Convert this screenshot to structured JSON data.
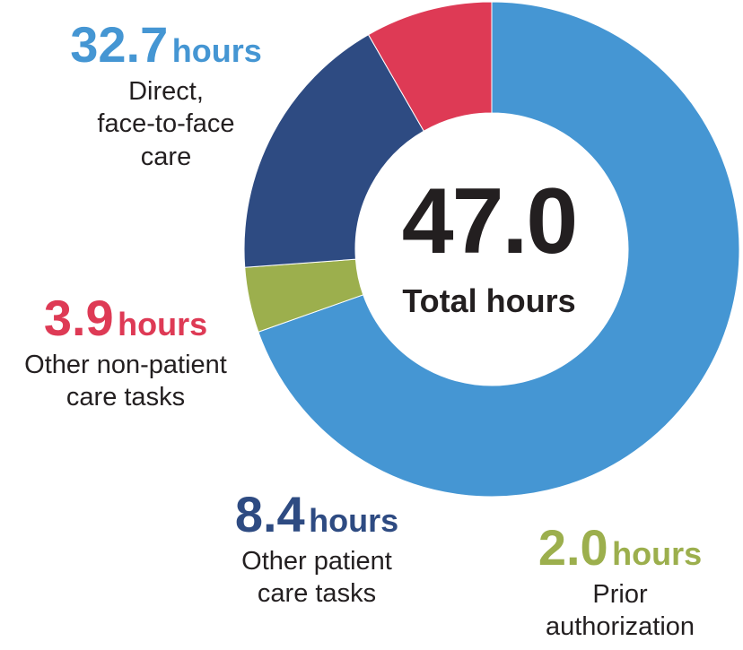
{
  "chart_data": {
    "type": "pie",
    "donut": true,
    "total": {
      "value": "47.0",
      "label": "Total hours"
    },
    "slices": [
      {
        "value": 32.7,
        "number": "32.7",
        "unit": "hours",
        "label_lines": [
          "Direct,",
          "face-to-face",
          "care"
        ],
        "color": "#4596d3"
      },
      {
        "value": 2.0,
        "number": "2.0",
        "unit": "hours",
        "label_lines": [
          "Prior",
          "authorization"
        ],
        "color": "#9caf4d"
      },
      {
        "value": 8.4,
        "number": "8.4",
        "unit": "hours",
        "label_lines": [
          "Other patient",
          "care tasks"
        ],
        "color": "#2e4b82"
      },
      {
        "value": 3.9,
        "number": "3.9",
        "unit": "hours",
        "label_lines": [
          "Other non-patient",
          "care tasks"
        ],
        "color": "#de3a55"
      }
    ]
  }
}
